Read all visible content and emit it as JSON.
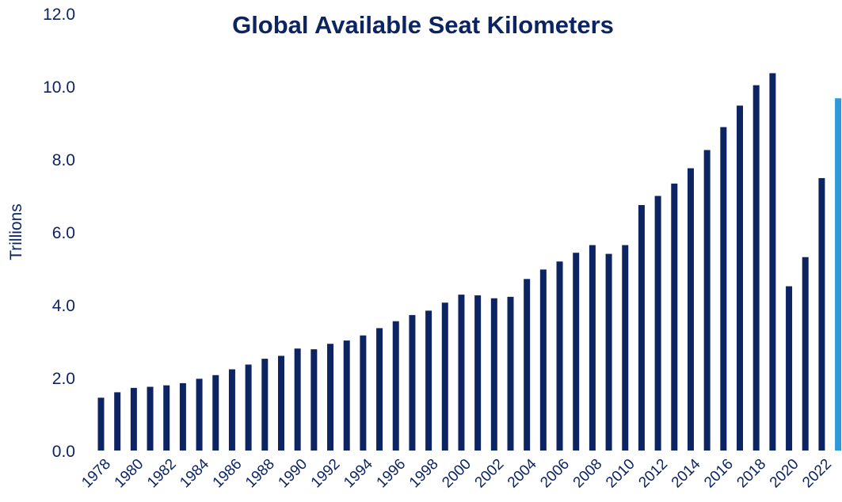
{
  "chart_data": {
    "type": "bar",
    "title": "Global Available Seat Kilometers",
    "ylabel": "Trillions",
    "xlabel": "",
    "ylim": [
      0,
      12
    ],
    "yticks": [
      "0.0",
      "2.0",
      "4.0",
      "6.0",
      "8.0",
      "10.0",
      "12.0"
    ],
    "grid": false,
    "legend": "none",
    "categories": [
      "1978",
      "1979",
      "1980",
      "1981",
      "1982",
      "1983",
      "1984",
      "1985",
      "1986",
      "1987",
      "1988",
      "1989",
      "1990",
      "1991",
      "1992",
      "1993",
      "1994",
      "1995",
      "1996",
      "1997",
      "1998",
      "1999",
      "2000",
      "2001",
      "2002",
      "2003",
      "2004",
      "2005",
      "2006",
      "2007",
      "2008",
      "2009",
      "2010",
      "2011",
      "2012",
      "2013",
      "2014",
      "2015",
      "2016",
      "2017",
      "2018",
      "2019",
      "2020",
      "2021",
      "2022",
      "2023"
    ],
    "xtick_labels": [
      "1978",
      "1980",
      "1982",
      "1984",
      "1986",
      "1988",
      "1990",
      "1992",
      "1994",
      "1996",
      "1998",
      "2000",
      "2002",
      "2004",
      "2006",
      "2008",
      "2010",
      "2012",
      "2014",
      "2016",
      "2018",
      "2020",
      "2022"
    ],
    "values": [
      1.45,
      1.6,
      1.72,
      1.75,
      1.79,
      1.85,
      1.97,
      2.07,
      2.23,
      2.36,
      2.52,
      2.6,
      2.8,
      2.78,
      2.93,
      3.02,
      3.16,
      3.36,
      3.55,
      3.72,
      3.84,
      4.06,
      4.28,
      4.26,
      4.18,
      4.22,
      4.71,
      4.97,
      5.19,
      5.43,
      5.64,
      5.4,
      5.64,
      6.74,
      6.99,
      7.33,
      7.75,
      8.25,
      8.88,
      9.47,
      10.03,
      10.36,
      4.51,
      5.31,
      7.48,
      9.67
    ],
    "colors": {
      "bar": "#0d2463",
      "highlight": "#2e98d8",
      "text": "#0d2463"
    },
    "highlight_index": 45
  }
}
